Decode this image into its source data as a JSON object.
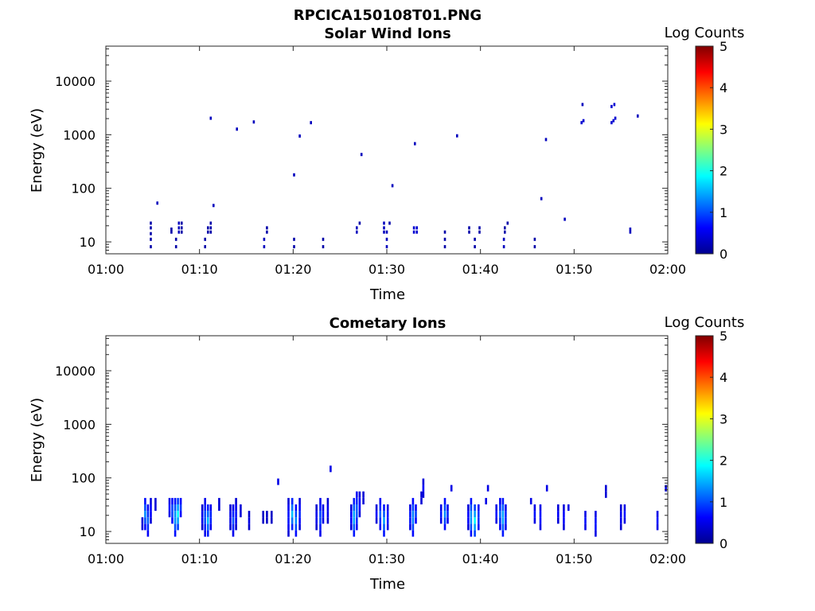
{
  "figure_title": "RPCICA150108T01.PNG",
  "chart_data": [
    {
      "type": "heatmap",
      "title": "Solar Wind Ions",
      "xlabel": "Time",
      "ylabel": "Energy (eV)",
      "x_ticks": [
        "01:00",
        "01:10",
        "01:20",
        "01:30",
        "01:40",
        "01:50",
        "02:00"
      ],
      "x_range_min": [
        0,
        60
      ],
      "y_scale": "log",
      "y_range": [
        6,
        45000
      ],
      "y_ticks": [
        10,
        100,
        1000,
        10000
      ],
      "y_tick_labels": [
        "10",
        "100",
        "1000",
        "10000"
      ],
      "colorbar": {
        "label": "Log Counts",
        "range": [
          0,
          5
        ],
        "ticks": [
          "0",
          "1",
          "2",
          "3",
          "4",
          "5"
        ]
      },
      "points": [
        [
          4.8,
          8,
          0.2
        ],
        [
          4.8,
          11,
          0.2
        ],
        [
          4.8,
          14,
          0.2
        ],
        [
          4.8,
          18,
          0.2
        ],
        [
          4.8,
          22,
          0.2
        ],
        [
          5.5,
          52,
          0.3
        ],
        [
          7.0,
          15,
          0.2
        ],
        [
          7.0,
          17,
          0.2
        ],
        [
          7.5,
          8,
          0.2
        ],
        [
          7.5,
          11,
          0.2
        ],
        [
          7.8,
          15,
          0.3
        ],
        [
          7.8,
          18,
          0.3
        ],
        [
          7.8,
          22,
          0.3
        ],
        [
          8.1,
          15,
          0.2
        ],
        [
          8.1,
          18,
          0.2
        ],
        [
          8.1,
          22,
          0.2
        ],
        [
          10.6,
          8,
          0.2
        ],
        [
          10.6,
          11,
          0.2
        ],
        [
          10.9,
          15,
          0.2
        ],
        [
          10.9,
          18,
          0.2
        ],
        [
          11.2,
          2000,
          0.3
        ],
        [
          11.2,
          15,
          0.2
        ],
        [
          11.2,
          18,
          0.2
        ],
        [
          11.2,
          22,
          0.2
        ],
        [
          11.5,
          47,
          0.3
        ],
        [
          14.0,
          1250,
          0.3
        ],
        [
          15.8,
          1700,
          0.3
        ],
        [
          16.9,
          8,
          0.3
        ],
        [
          16.9,
          11,
          0.3
        ],
        [
          17.2,
          15,
          0.2
        ],
        [
          17.2,
          18,
          0.2
        ],
        [
          20.1,
          175,
          0.3
        ],
        [
          20.1,
          8,
          0.2
        ],
        [
          20.1,
          11,
          0.2
        ],
        [
          20.7,
          930,
          0.3
        ],
        [
          21.9,
          1650,
          0.3
        ],
        [
          23.2,
          8,
          0.2
        ],
        [
          23.2,
          11,
          0.2
        ],
        [
          26.8,
          15,
          0.3
        ],
        [
          26.8,
          18,
          0.3
        ],
        [
          27.1,
          22,
          0.2
        ],
        [
          27.3,
          420,
          0.3
        ],
        [
          29.7,
          15,
          0.3
        ],
        [
          29.7,
          18,
          0.3
        ],
        [
          29.7,
          22,
          0.3
        ],
        [
          30.0,
          8,
          0.3
        ],
        [
          30.0,
          11,
          0.3
        ],
        [
          30.0,
          15,
          0.3
        ],
        [
          30.3,
          22,
          0.2
        ],
        [
          30.6,
          110,
          0.3
        ],
        [
          32.9,
          15,
          0.4
        ],
        [
          32.9,
          18,
          0.4
        ],
        [
          33.2,
          15,
          0.4
        ],
        [
          33.2,
          18,
          0.4
        ],
        [
          33.0,
          670,
          0.3
        ],
        [
          36.2,
          8,
          0.2
        ],
        [
          36.2,
          11,
          0.2
        ],
        [
          36.2,
          15,
          0.2
        ],
        [
          37.5,
          940,
          0.3
        ],
        [
          38.8,
          15,
          0.2
        ],
        [
          38.8,
          18,
          0.2
        ],
        [
          39.4,
          8,
          0.2
        ],
        [
          39.4,
          11,
          0.2
        ],
        [
          39.9,
          15,
          0.2
        ],
        [
          39.9,
          18,
          0.2
        ],
        [
          42.5,
          8,
          0.3
        ],
        [
          42.5,
          11,
          0.3
        ],
        [
          42.6,
          15,
          0.2
        ],
        [
          42.6,
          18,
          0.2
        ],
        [
          42.9,
          22,
          0.2
        ],
        [
          45.8,
          8,
          0.2
        ],
        [
          45.8,
          11,
          0.2
        ],
        [
          46.5,
          63,
          0.3
        ],
        [
          47.0,
          800,
          0.3
        ],
        [
          49.0,
          26,
          0.3
        ],
        [
          50.9,
          3600,
          0.3
        ],
        [
          50.8,
          1650,
          0.4
        ],
        [
          51.0,
          1800,
          0.4
        ],
        [
          54.0,
          3300,
          0.4
        ],
        [
          54.3,
          3600,
          0.4
        ],
        [
          54.0,
          1650,
          0.4
        ],
        [
          54.2,
          1800,
          0.4
        ],
        [
          54.4,
          2000,
          0.4
        ],
        [
          56.0,
          15,
          0.3
        ],
        [
          56.0,
          17,
          0.3
        ],
        [
          56.8,
          2200,
          0.3
        ]
      ]
    },
    {
      "type": "heatmap",
      "title": "Cometary Ions",
      "xlabel": "Time",
      "ylabel": "Energy (eV)",
      "x_ticks": [
        "01:00",
        "01:10",
        "01:20",
        "01:30",
        "01:40",
        "01:50",
        "02:00"
      ],
      "x_range_min": [
        0,
        60
      ],
      "y_scale": "log",
      "y_range": [
        6,
        45000
      ],
      "y_ticks": [
        10,
        100,
        1000,
        10000
      ],
      "y_tick_labels": [
        "10",
        "100",
        "1000",
        "10000"
      ],
      "colorbar": {
        "label": "Log Counts",
        "range": [
          0,
          5
        ],
        "ticks": [
          "0",
          "1",
          "2",
          "3",
          "4",
          "5"
        ]
      },
      "columns": [
        [
          3.9,
          1,
          2,
          0.3
        ],
        [
          4.2,
          1,
          5,
          1.1
        ],
        [
          4.5,
          0,
          4,
          0.9
        ],
        [
          4.8,
          2,
          5,
          0.5
        ],
        [
          5.3,
          4,
          5,
          0.3
        ],
        [
          6.8,
          3,
          5,
          0.5
        ],
        [
          7.1,
          2,
          5,
          0.9
        ],
        [
          7.4,
          0,
          5,
          1.3
        ],
        [
          7.7,
          1,
          5,
          1.7
        ],
        [
          8.0,
          3,
          5,
          0.7
        ],
        [
          10.3,
          1,
          4,
          0.4
        ],
        [
          10.6,
          0,
          5,
          0.9
        ],
        [
          10.9,
          0,
          4,
          1.3
        ],
        [
          11.2,
          1,
          4,
          0.7
        ],
        [
          12.1,
          4,
          5,
          0.3
        ],
        [
          13.3,
          1,
          4,
          0.4
        ],
        [
          13.6,
          0,
          4,
          0.8
        ],
        [
          13.9,
          1,
          5,
          0.5
        ],
        [
          14.4,
          3,
          4,
          0.3
        ],
        [
          15.3,
          1,
          3,
          0.3
        ],
        [
          16.8,
          2,
          3,
          0.2
        ],
        [
          17.2,
          2,
          3,
          0.2
        ],
        [
          17.7,
          2,
          3,
          0.2
        ],
        [
          19.5,
          0,
          5,
          0.6
        ],
        [
          19.9,
          1,
          5,
          1.4
        ],
        [
          20.3,
          0,
          4,
          1.1
        ],
        [
          20.7,
          1,
          5,
          0.6
        ],
        [
          18.4,
          8,
          8,
          0.3
        ],
        [
          22.5,
          1,
          4,
          0.4
        ],
        [
          22.9,
          0,
          5,
          0.9
        ],
        [
          23.2,
          2,
          4,
          0.5
        ],
        [
          24.0,
          10,
          10,
          0.3
        ],
        [
          23.7,
          2,
          5,
          0.4
        ],
        [
          26.2,
          1,
          4,
          0.5
        ],
        [
          26.5,
          0,
          5,
          1.4
        ],
        [
          26.8,
          1,
          6,
          1.0
        ],
        [
          27.1,
          3,
          6,
          0.5
        ],
        [
          27.5,
          5,
          6,
          0.3
        ],
        [
          28.9,
          2,
          4,
          0.4
        ],
        [
          29.3,
          1,
          5,
          0.9
        ],
        [
          29.7,
          0,
          4,
          1.2
        ],
        [
          30.1,
          1,
          4,
          0.6
        ],
        [
          32.5,
          1,
          4,
          0.6
        ],
        [
          32.8,
          0,
          5,
          1.2
        ],
        [
          33.1,
          2,
          4,
          0.7
        ],
        [
          33.9,
          6,
          8,
          0.4
        ],
        [
          33.7,
          5,
          6,
          0.3
        ],
        [
          35.8,
          2,
          4,
          0.5
        ],
        [
          36.2,
          1,
          5,
          1.1
        ],
        [
          36.5,
          2,
          4,
          0.6
        ],
        [
          36.9,
          7,
          7,
          0.3
        ],
        [
          38.7,
          1,
          4,
          0.5
        ],
        [
          39.0,
          0,
          5,
          1.3
        ],
        [
          39.4,
          0,
          4,
          1.7
        ],
        [
          39.8,
          1,
          4,
          0.8
        ],
        [
          40.6,
          5,
          5,
          0.3
        ],
        [
          40.8,
          7,
          7,
          0.3
        ],
        [
          41.7,
          2,
          4,
          0.5
        ],
        [
          42.1,
          1,
          5,
          0.9
        ],
        [
          42.4,
          0,
          5,
          1.4
        ],
        [
          42.7,
          1,
          4,
          0.7
        ],
        [
          45.4,
          5,
          5,
          0.3
        ],
        [
          45.8,
          2,
          4,
          0.5
        ],
        [
          46.4,
          1,
          4,
          0.6
        ],
        [
          47.1,
          7,
          7,
          0.3
        ],
        [
          48.3,
          2,
          4,
          0.4
        ],
        [
          48.9,
          1,
          4,
          0.5
        ],
        [
          49.4,
          4,
          4,
          0.3
        ],
        [
          51.2,
          1,
          3,
          0.5
        ],
        [
          52.3,
          0,
          3,
          0.6
        ],
        [
          53.4,
          6,
          7,
          0.3
        ],
        [
          55.0,
          1,
          4,
          0.4
        ],
        [
          55.4,
          2,
          4,
          0.5
        ],
        [
          58.9,
          1,
          3,
          0.5
        ],
        [
          59.8,
          7,
          7,
          0.3
        ]
      ]
    }
  ]
}
